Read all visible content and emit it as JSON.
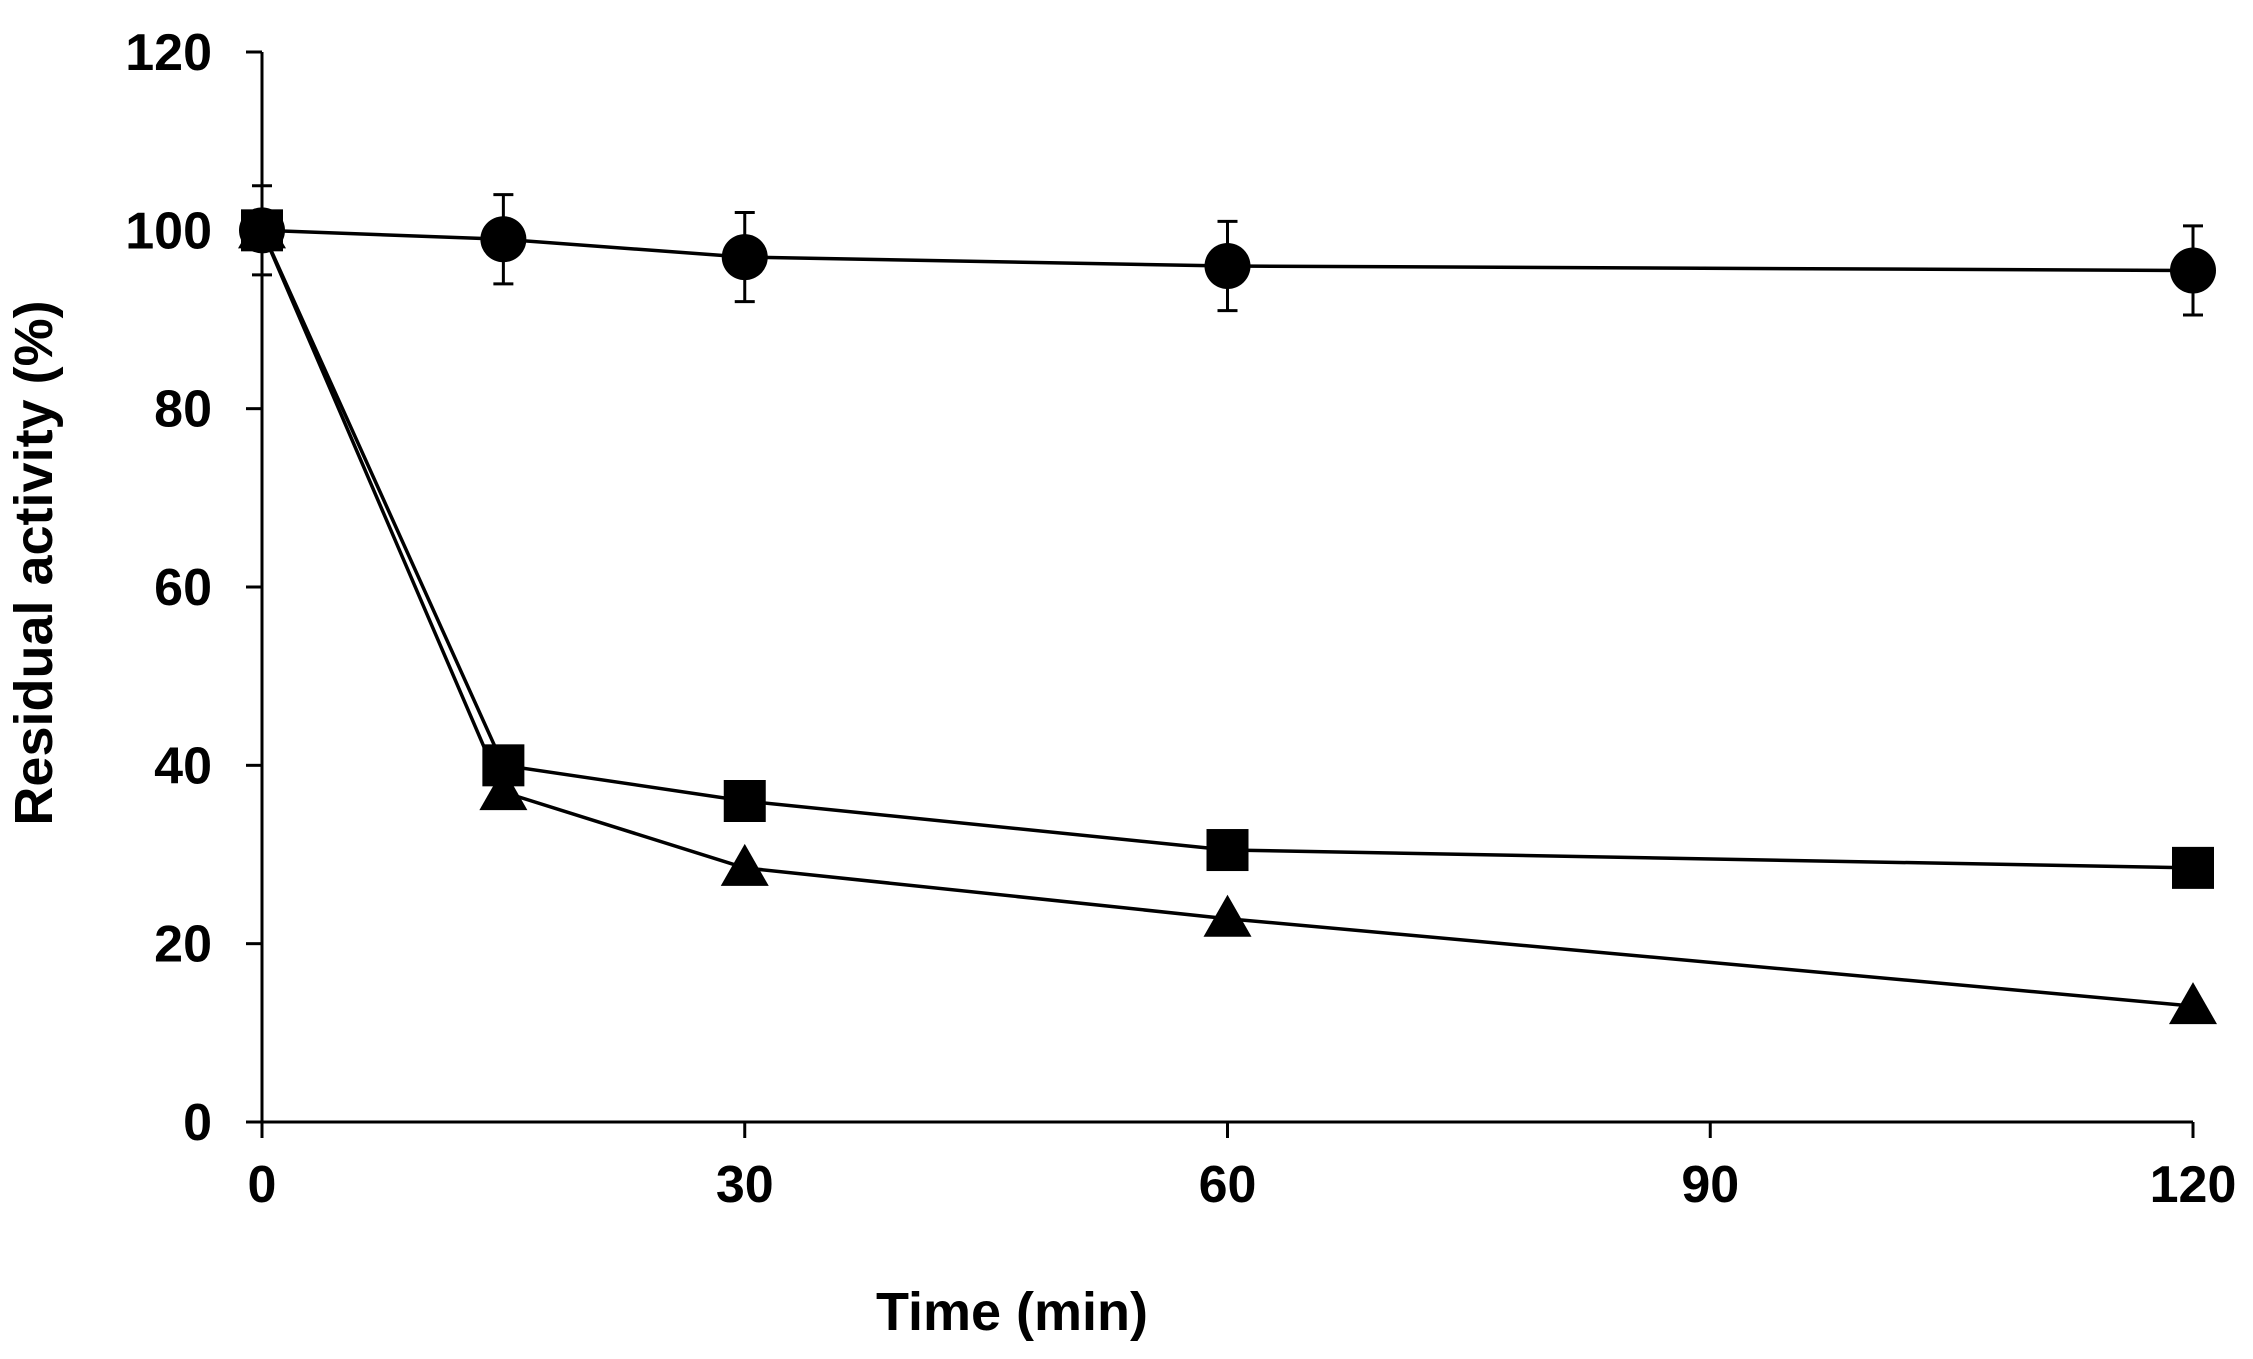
{
  "chart_data": {
    "type": "line",
    "title": "",
    "xlabel": "Time (min)",
    "ylabel": "Residual activity (%)",
    "xlim": [
      0,
      120
    ],
    "ylim": [
      0,
      120
    ],
    "xticks": [
      0,
      30,
      60,
      90,
      120
    ],
    "yticks": [
      0,
      20,
      40,
      60,
      80,
      100,
      120
    ],
    "grid": false,
    "legend": "none",
    "x": [
      0,
      15,
      30,
      60,
      120
    ],
    "series": [
      {
        "name": "circle",
        "marker": "circle",
        "values": [
          100,
          99,
          97,
          96,
          95.5
        ],
        "errors": [
          5,
          5,
          5,
          5,
          5
        ]
      },
      {
        "name": "square",
        "marker": "square",
        "values": [
          100,
          40,
          36,
          30.5,
          28.5
        ],
        "errors": [
          0,
          0,
          0,
          0,
          0
        ]
      },
      {
        "name": "triangle",
        "marker": "triangle",
        "values": [
          100,
          37,
          28.5,
          22.8,
          13
        ],
        "errors": [
          0,
          0,
          0,
          0,
          0
        ]
      }
    ],
    "colors": {
      "line": "#000000",
      "marker": "#000000",
      "background": "#ffffff"
    }
  }
}
